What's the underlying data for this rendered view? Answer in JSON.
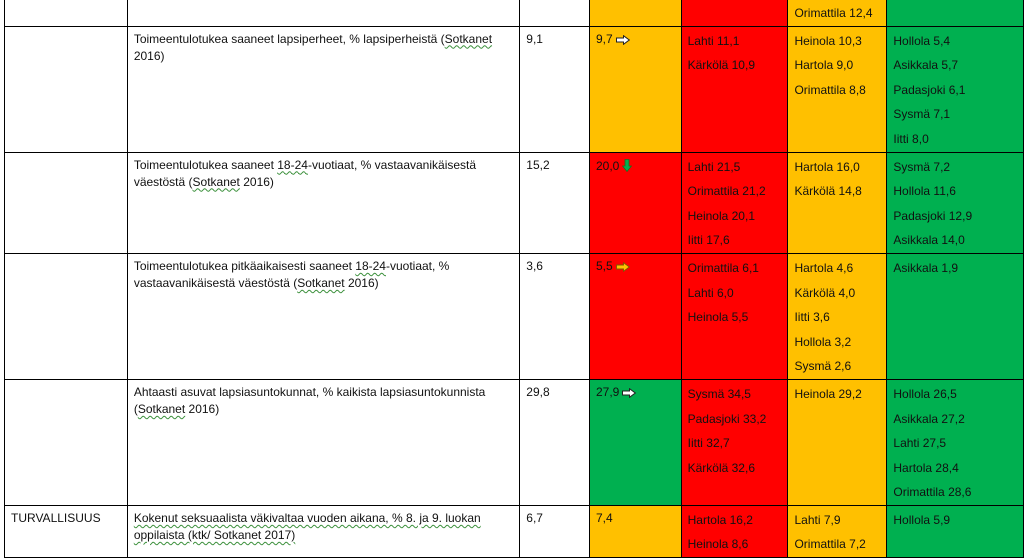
{
  "rows": [
    {
      "category": "",
      "indicator": "",
      "value": "",
      "region": "",
      "region_color": "yellow",
      "trend_icon": "",
      "red_list": [
        ""
      ],
      "yellow_list": [
        "Orimattila 12,4"
      ],
      "green_list": [
        ""
      ]
    },
    {
      "category": "",
      "indicator_parts": [
        "Toimeentulotukea saaneet lapsiperheet, % lapsiperheistä (",
        "Sotkanet",
        " 2016)"
      ],
      "value": "9,1",
      "region": "9,7",
      "region_color": "yellow",
      "trend_icon": "arrow-right-outline-icon",
      "red_list": [
        "Lahti 11,1",
        "Kärkölä 10,9"
      ],
      "yellow_list": [
        "Heinola 10,3",
        "Hartola 9,0",
        "Orimattila 8,8"
      ],
      "green_list": [
        "Hollola 5,4",
        "Asikkala 5,7",
        "Padasjoki 6,1",
        "Sysmä 7,1",
        "Iitti 8,0"
      ]
    },
    {
      "category": "",
      "indicator_parts": [
        "Toimeentulotukea saaneet ",
        "18-24",
        "-vuotiaat, % vastaavanikäisestä väestöstä (",
        "Sotkanet",
        " 2016)"
      ],
      "value": "15,2",
      "region": "20,0",
      "region_color": "red",
      "trend_icon": "arrow-down-green-icon",
      "red_list": [
        "Lahti 21,5",
        "Orimattila 21,2",
        "Heinola 20,1",
        "Iitti 17,6"
      ],
      "yellow_list": [
        "Hartola 16,0",
        "Kärkölä 14,8"
      ],
      "green_list": [
        "Sysmä 7,2",
        "Hollola 11,6",
        "Padasjoki 12,9",
        "Asikkala 14,0"
      ]
    },
    {
      "category": "",
      "indicator_parts": [
        "Toimeentulotukea pitkäaikaisesti saaneet ",
        "18-24",
        "-vuotiaat, % vastaavanikäisestä väestöstä (",
        "Sotkanet",
        " 2016)"
      ],
      "value": "3,6",
      "region": "5,5",
      "region_color": "red",
      "trend_icon": "arrow-right-yellow-icon",
      "red_list": [
        "Orimattila 6,1",
        "Lahti 6,0",
        "Heinola 5,5"
      ],
      "yellow_list": [
        "Hartola 4,6",
        "Kärkölä 4,0",
        "Iitti 3,6",
        "Hollola 3,2",
        "Sysmä 2,6"
      ],
      "green_list": [
        "Asikkala 1,9"
      ]
    },
    {
      "category": "",
      "indicator_parts": [
        "Ahtaasti asuvat lapsiasuntokunnat, % kaikista lapsiasuntokunnista (",
        "Sotkanet",
        " 2016)"
      ],
      "value": "29,8",
      "region": "27,9",
      "region_color": "green",
      "trend_icon": "arrow-right-outline-icon",
      "red_list": [
        "Sysmä 34,5",
        "Padasjoki 33,2",
        "Iitti 32,7",
        "Kärkölä 32,6"
      ],
      "yellow_list": [
        "Heinola 29,2"
      ],
      "green_list": [
        "Hollola 26,5",
        "Asikkala 27,2",
        "Lahti 27,5",
        "Hartola 28,4",
        "Orimattila 28,6"
      ]
    },
    {
      "category": "TURVALLISUUS",
      "indicator_parts": [
        "Kokenut seksuaalista väkivaltaa vuoden aikana, % 8. ja 9. luokan oppilaista (ktk/ Sotkanet 2017)"
      ],
      "indicator_style": "wavy",
      "value": "6,7",
      "region": "7,4",
      "region_color": "yellow",
      "trend_icon": "",
      "red_list": [
        "Hartola 16,2",
        "Heinola 8,6"
      ],
      "yellow_list": [
        "Lahti 7,9",
        "Orimattila 7,2"
      ],
      "green_list": [
        "Hollola 5,9"
      ]
    }
  ]
}
